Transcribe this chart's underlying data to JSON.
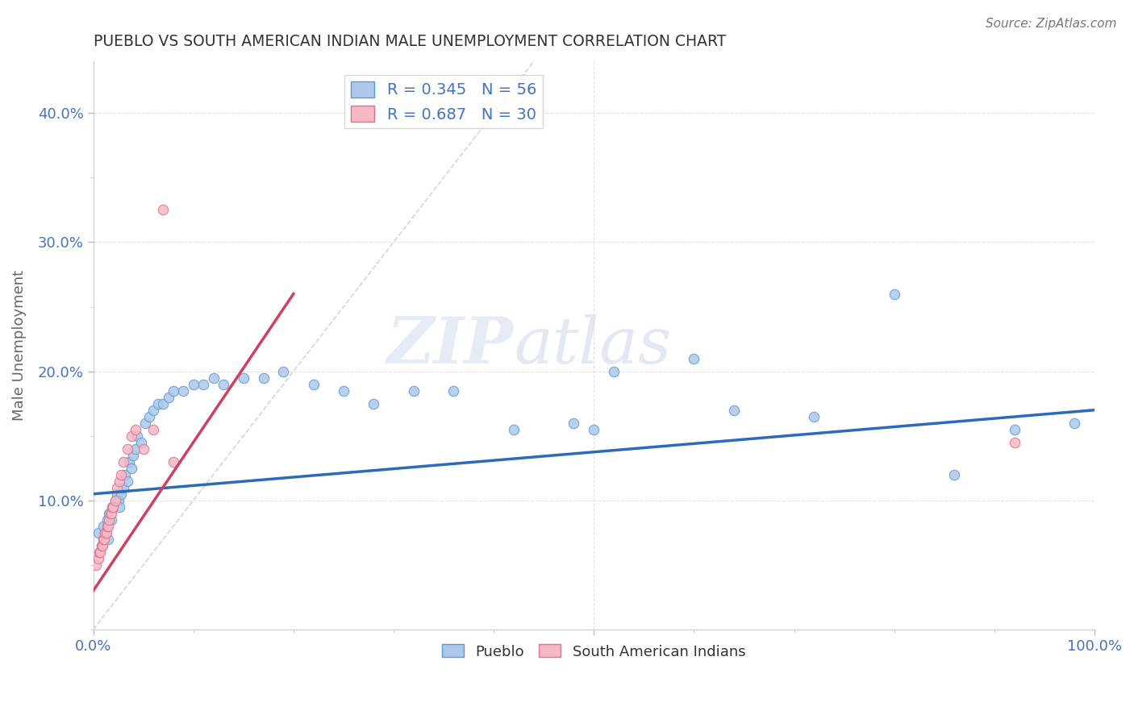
{
  "title": "PUEBLO VS SOUTH AMERICAN INDIAN MALE UNEMPLOYMENT CORRELATION CHART",
  "source": "Source: ZipAtlas.com",
  "ylabel": "Male Unemployment",
  "xlim": [
    0,
    1.0
  ],
  "ylim": [
    0,
    0.44
  ],
  "pueblo_color": "#adc8ea",
  "pueblo_edge": "#5b9bd5",
  "sa_color": "#f5b8c4",
  "sa_edge": "#e07090",
  "trend_blue": "#2b6bba",
  "trend_pink": "#d04060",
  "diag_color": "#cccccc",
  "R_pueblo": 0.345,
  "N_pueblo": 56,
  "R_sa": 0.687,
  "N_sa": 30,
  "watermark": "ZIPatlas",
  "title_color": "#333333",
  "source_color": "#777777",
  "tick_color": "#4472c4",
  "ylabel_color": "#666666",
  "grid_color": "#e0e0e0",
  "pueblo_x": [
    0.005,
    0.008,
    0.01,
    0.01,
    0.012,
    0.014,
    0.015,
    0.016,
    0.018,
    0.019,
    0.02,
    0.022,
    0.024,
    0.025,
    0.026,
    0.028,
    0.03,
    0.032,
    0.034,
    0.036,
    0.038,
    0.04,
    0.042,
    0.044,
    0.048,
    0.052,
    0.056,
    0.06,
    0.065,
    0.07,
    0.075,
    0.08,
    0.09,
    0.1,
    0.11,
    0.12,
    0.13,
    0.15,
    0.17,
    0.19,
    0.22,
    0.25,
    0.28,
    0.32,
    0.36,
    0.42,
    0.48,
    0.5,
    0.52,
    0.6,
    0.64,
    0.72,
    0.8,
    0.86,
    0.92,
    0.98
  ],
  "pueblo_y": [
    0.075,
    0.065,
    0.07,
    0.08,
    0.075,
    0.085,
    0.07,
    0.09,
    0.085,
    0.095,
    0.095,
    0.1,
    0.105,
    0.1,
    0.095,
    0.105,
    0.11,
    0.12,
    0.115,
    0.13,
    0.125,
    0.135,
    0.14,
    0.15,
    0.145,
    0.16,
    0.165,
    0.17,
    0.175,
    0.175,
    0.18,
    0.185,
    0.185,
    0.19,
    0.19,
    0.195,
    0.19,
    0.195,
    0.195,
    0.2,
    0.19,
    0.185,
    0.175,
    0.185,
    0.185,
    0.155,
    0.16,
    0.155,
    0.2,
    0.21,
    0.17,
    0.165,
    0.26,
    0.12,
    0.155,
    0.16
  ],
  "sa_x": [
    0.003,
    0.005,
    0.006,
    0.007,
    0.008,
    0.009,
    0.01,
    0.011,
    0.012,
    0.013,
    0.014,
    0.015,
    0.016,
    0.017,
    0.018,
    0.019,
    0.02,
    0.022,
    0.024,
    0.026,
    0.028,
    0.03,
    0.034,
    0.038,
    0.042,
    0.05,
    0.06,
    0.07,
    0.08,
    0.92
  ],
  "sa_y": [
    0.05,
    0.055,
    0.06,
    0.06,
    0.065,
    0.065,
    0.07,
    0.07,
    0.075,
    0.075,
    0.08,
    0.08,
    0.085,
    0.09,
    0.09,
    0.095,
    0.095,
    0.1,
    0.11,
    0.115,
    0.12,
    0.13,
    0.14,
    0.15,
    0.155,
    0.14,
    0.155,
    0.325,
    0.13,
    0.145
  ],
  "blue_trend_x": [
    0.0,
    1.0
  ],
  "blue_trend_y": [
    0.105,
    0.17
  ],
  "pink_trend_x0": 0.0,
  "pink_trend_x1": 0.2,
  "pink_trend_y0": 0.03,
  "pink_trend_y1": 0.26
}
